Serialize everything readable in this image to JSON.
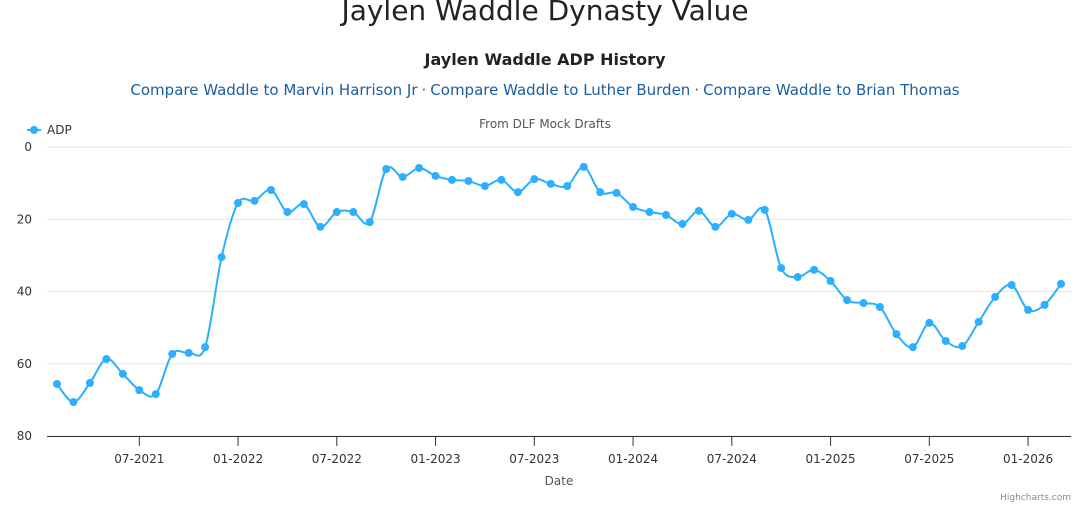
{
  "page_title": "Jaylen Waddle Dynasty Value",
  "compare_links": [
    "Compare Waddle to Marvin Harrison Jr",
    "Compare Waddle to Luther Burden",
    "Compare Waddle to Brian Thomas"
  ],
  "link_separator": "·",
  "credits": "Highcharts.com",
  "chart_data": {
    "type": "line",
    "title": "Jaylen Waddle ADP History",
    "subtitle": "From DLF Mock Drafts",
    "x_label": "Date",
    "x": [
      "2021-02",
      "2021-03",
      "2021-04",
      "2021-05",
      "2021-06",
      "2021-07",
      "2021-08",
      "2021-09",
      "2021-10",
      "2021-11",
      "2021-12",
      "2022-01",
      "2022-02",
      "2022-03",
      "2022-04",
      "2022-05",
      "2022-06",
      "2022-07",
      "2022-08",
      "2022-09",
      "2022-10",
      "2022-11",
      "2022-12",
      "2023-01",
      "2023-02",
      "2023-03",
      "2023-04",
      "2023-05",
      "2023-06",
      "2023-07",
      "2023-08",
      "2023-09",
      "2023-10",
      "2023-11",
      "2023-12",
      "2024-01",
      "2024-02",
      "2024-03",
      "2024-04",
      "2024-05",
      "2024-06",
      "2024-07",
      "2024-08",
      "2024-09",
      "2024-10",
      "2024-11",
      "2024-12",
      "2025-01",
      "2025-02",
      "2025-03",
      "2025-04",
      "2025-05",
      "2025-06",
      "2025-07",
      "2025-08",
      "2025-09",
      "2025-10",
      "2025-11",
      "2025-12",
      "2026-01",
      "2026-02",
      "2026-03"
    ],
    "series": [
      {
        "name": "ADP",
        "color": "#2caffe",
        "values": [
          65.6,
          70.6,
          65.3,
          58.7,
          62.8,
          67.3,
          68.4,
          57.3,
          57.0,
          55.4,
          30.5,
          15.5,
          14.9,
          11.9,
          18.0,
          15.8,
          22.1,
          18.0,
          18.0,
          20.8,
          6.1,
          8.3,
          5.8,
          8.0,
          9.1,
          9.4,
          10.8,
          9.1,
          12.5,
          8.9,
          10.2,
          10.8,
          5.5,
          12.5,
          12.7,
          16.6,
          18.0,
          18.8,
          21.3,
          17.7,
          22.1,
          18.5,
          20.2,
          17.4,
          33.5,
          36.0,
          34.0,
          37.1,
          42.4,
          43.2,
          44.3,
          51.8,
          55.4,
          48.7,
          53.7,
          55.1,
          48.4,
          41.5,
          38.2,
          45.1,
          43.7,
          37.9
        ]
      }
    ],
    "xlim": [
      "2021-02",
      "2026-03"
    ],
    "xticks": [
      {
        "value": "2021-07",
        "label": "07-2021"
      },
      {
        "value": "2022-01",
        "label": "01-2022"
      },
      {
        "value": "2022-07",
        "label": "07-2022"
      },
      {
        "value": "2023-01",
        "label": "01-2023"
      },
      {
        "value": "2023-07",
        "label": "07-2023"
      },
      {
        "value": "2024-01",
        "label": "01-2024"
      },
      {
        "value": "2024-07",
        "label": "07-2024"
      },
      {
        "value": "2025-01",
        "label": "01-2025"
      },
      {
        "value": "2025-07",
        "label": "07-2025"
      },
      {
        "value": "2026-01",
        "label": "01-2026"
      }
    ],
    "ylim": [
      0,
      80
    ],
    "yticks": [
      0,
      20,
      40,
      60,
      80
    ],
    "y_reversed": true,
    "grid": true,
    "legend": "top-left"
  }
}
